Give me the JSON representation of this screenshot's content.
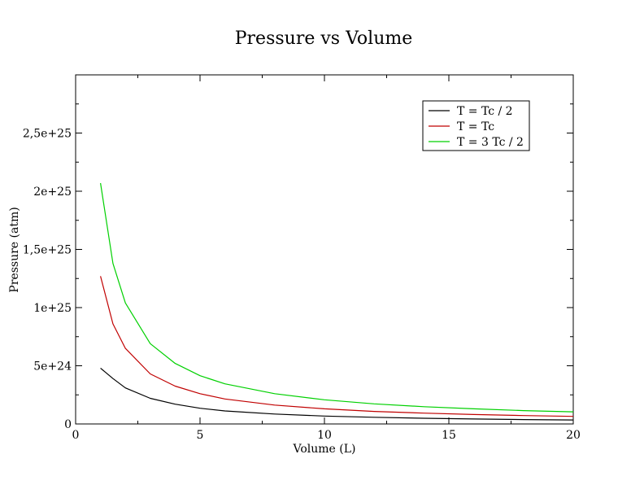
{
  "chart_data": {
    "type": "line",
    "title": "Pressure vs Volume",
    "xlabel": "Volume (L)",
    "ylabel": "Pressure (atm)",
    "xlim": [
      0,
      20
    ],
    "ylim": [
      0,
      3e+25
    ],
    "x_ticks": [
      0,
      5,
      10,
      15,
      20
    ],
    "x_tick_labels": [
      "0",
      "5",
      "10",
      "15",
      "20"
    ],
    "y_ticks": [
      0,
      5e+24,
      1e+25,
      1.5e+25,
      2e+25,
      2.5e+25
    ],
    "y_tick_labels": [
      "0",
      "5e+24",
      "1e+25",
      "1,5e+25",
      "2e+25",
      "2,5e+25"
    ],
    "grid": false,
    "legend_position": "top-right",
    "series": [
      {
        "name": "T = Tc / 2",
        "color": "#000000",
        "x": [
          1,
          1.5,
          2,
          3,
          4,
          5,
          6,
          8,
          10,
          12,
          14,
          16,
          18,
          20
        ],
        "y": [
          4.8e+24,
          3.9e+24,
          3.1e+24,
          2.2e+24,
          1.7e+24,
          1.35e+24,
          1.12e+24,
          8.5e+23,
          6.8e+23,
          5.7e+23,
          4.9e+23,
          4.3e+23,
          3.8e+23,
          3.4e+23
        ]
      },
      {
        "name": "T = Tc",
        "color": "#c00000",
        "x": [
          1,
          1.5,
          2,
          3,
          4,
          5,
          6,
          8,
          10,
          12,
          14,
          16,
          18,
          20
        ],
        "y": [
          1.27e+25,
          8.6e+24,
          6.5e+24,
          4.3e+24,
          3.25e+24,
          2.6e+24,
          2.15e+24,
          1.62e+24,
          1.3e+24,
          1.08e+24,
          9.3e+23,
          8.1e+23,
          7.2e+23,
          6.5e+23
        ]
      },
      {
        "name": "T = 3 Tc / 2",
        "color": "#00d000",
        "x": [
          1,
          1.5,
          2,
          3,
          4,
          5,
          6,
          8,
          10,
          12,
          14,
          16,
          18,
          20
        ],
        "y": [
          2.07e+25,
          1.38e+25,
          1.04e+25,
          6.9e+24,
          5.2e+24,
          4.15e+24,
          3.45e+24,
          2.6e+24,
          2.08e+24,
          1.73e+24,
          1.48e+24,
          1.3e+24,
          1.15e+24,
          1.04e+24
        ]
      }
    ]
  }
}
